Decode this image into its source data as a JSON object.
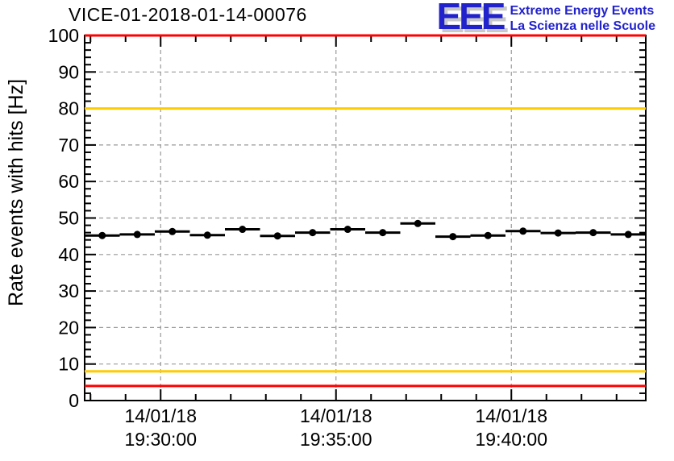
{
  "logo": {
    "acronym": "EEE",
    "line1": "Extreme Energy Events",
    "line2": "La Scienza nelle Scuole",
    "color": "#2222cc",
    "shadow_color": "#c8c8c8"
  },
  "chart_data": {
    "type": "scatter",
    "title": "VICE-01-2018-01-14-00076",
    "xlabel": "",
    "ylabel": "Rate events with hits [Hz]",
    "ylim": [
      0,
      100
    ],
    "y_major_step": 10,
    "y_minor_step": 2,
    "y_tick_values": [
      0,
      10,
      20,
      30,
      40,
      50,
      60,
      70,
      80,
      90,
      100
    ],
    "xlim": [
      "19:27:50",
      "19:43:50"
    ],
    "x_minor_step_s": 60,
    "x_major_step_s": 300,
    "x_major_ticks": [
      {
        "date": "14/01/18",
        "time": "19:30:00"
      },
      {
        "date": "14/01/18",
        "time": "19:35:00"
      },
      {
        "date": "14/01/18",
        "time": "19:40:00"
      }
    ],
    "grid": {
      "style": "dashed",
      "color": "#999999",
      "on_major_ticks": true
    },
    "legend": "none",
    "marker": {
      "shape": "filled-circle",
      "color": "#000000",
      "radius": 4.5
    },
    "bin_width_s": 60,
    "thresholds": [
      {
        "value": 100,
        "color": "#ff0000",
        "label": "red-max"
      },
      {
        "value": 80,
        "color": "#ffcc00",
        "label": "yellow-max"
      },
      {
        "value": 8,
        "color": "#ffcc00",
        "label": "yellow-min"
      },
      {
        "value": 4,
        "color": "#ff0000",
        "label": "red-min"
      }
    ],
    "series": [
      {
        "name": "rate-events-with-hits",
        "points": [
          {
            "t": "19:28:20",
            "y": 45.2
          },
          {
            "t": "19:29:20",
            "y": 45.5
          },
          {
            "t": "19:30:20",
            "y": 46.3
          },
          {
            "t": "19:31:20",
            "y": 45.3
          },
          {
            "t": "19:32:20",
            "y": 46.9
          },
          {
            "t": "19:33:20",
            "y": 45.1
          },
          {
            "t": "19:34:20",
            "y": 46.0
          },
          {
            "t": "19:35:20",
            "y": 46.9
          },
          {
            "t": "19:36:20",
            "y": 46.0
          },
          {
            "t": "19:37:20",
            "y": 48.5
          },
          {
            "t": "19:38:20",
            "y": 44.9
          },
          {
            "t": "19:39:20",
            "y": 45.2
          },
          {
            "t": "19:40:20",
            "y": 46.4
          },
          {
            "t": "19:41:20",
            "y": 45.9
          },
          {
            "t": "19:42:20",
            "y": 46.0
          },
          {
            "t": "19:43:20",
            "y": 45.5
          }
        ]
      }
    ]
  }
}
